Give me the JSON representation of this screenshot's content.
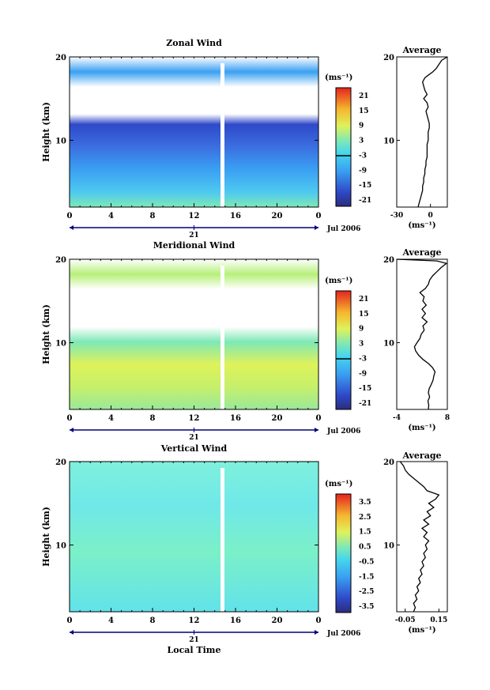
{
  "chart_data": [
    {
      "type": "heatmap",
      "title": "Zonal Wind",
      "ylabel": "Height (km)",
      "xlabel": "",
      "ylim": [
        2,
        20
      ],
      "xlim": [
        0,
        24
      ],
      "x_ticks": [
        "0",
        "4",
        "8",
        "12",
        "16",
        "20",
        "0"
      ],
      "y_ticks": [
        "20",
        "10"
      ],
      "date_ticks": [
        {
          "label": "21",
          "x": 12
        }
      ],
      "date_label": "Jul 2006",
      "colorbar": {
        "unit": "(ms⁻¹)",
        "ticks": [
          "21",
          "15",
          "9",
          "3",
          "-3",
          "-9",
          "-15",
          "-21"
        ],
        "zero_line_index": 3
      },
      "average": {
        "title": "Average",
        "xlim": [
          -30,
          15
        ],
        "x_ticks": [
          "-30",
          "0"
        ],
        "y_ticks": [
          "20",
          "10"
        ],
        "unit": "(ms⁻¹)",
        "profile": [
          [
            -11,
            2
          ],
          [
            -10,
            2.5
          ],
          [
            -9,
            3
          ],
          [
            -8,
            3.5
          ],
          [
            -7,
            4
          ],
          [
            -7,
            4.5
          ],
          [
            -6,
            5
          ],
          [
            -6,
            5.5
          ],
          [
            -5,
            6
          ],
          [
            -5,
            6.5
          ],
          [
            -4,
            7
          ],
          [
            -4,
            7.5
          ],
          [
            -3,
            8
          ],
          [
            -3,
            8.5
          ],
          [
            -3,
            9
          ],
          [
            -3,
            9.5
          ],
          [
            -2,
            10
          ],
          [
            -2,
            10.5
          ],
          [
            -2,
            11
          ],
          [
            -1,
            11.5
          ],
          [
            -1,
            12
          ],
          [
            -2,
            12.5
          ],
          [
            -3,
            13
          ],
          [
            -4,
            13.5
          ],
          [
            -2,
            14
          ],
          [
            -3,
            14.5
          ],
          [
            -6,
            15
          ],
          [
            -3,
            15.5
          ],
          [
            -5,
            16
          ],
          [
            -6,
            16.5
          ],
          [
            -7,
            17
          ],
          [
            -5,
            17.5
          ],
          [
            -2,
            17.8
          ],
          [
            2,
            18.2
          ],
          [
            5,
            18.6
          ],
          [
            7,
            19
          ],
          [
            10,
            19.6
          ],
          [
            15,
            20
          ]
        ]
      }
    },
    {
      "type": "heatmap",
      "title": "Meridional Wind",
      "ylabel": "Height (km)",
      "xlabel": "",
      "ylim": [
        2,
        20
      ],
      "xlim": [
        0,
        24
      ],
      "x_ticks": [
        "0",
        "4",
        "8",
        "12",
        "16",
        "20",
        "0"
      ],
      "y_ticks": [
        "20",
        "10"
      ],
      "date_ticks": [
        {
          "label": "21",
          "x": 12
        }
      ],
      "date_label": "Jul 2006",
      "colorbar": {
        "unit": "(ms⁻¹)",
        "ticks": [
          "21",
          "15",
          "9",
          "3",
          "-3",
          "-9",
          "-15",
          "-21"
        ],
        "zero_line_index": 3
      },
      "average": {
        "title": "Average",
        "xlim": [
          -4,
          8
        ],
        "x_ticks": [
          "-4",
          "8"
        ],
        "y_ticks": [
          "20",
          "10"
        ],
        "unit": "(ms⁻¹)",
        "profile": [
          [
            3.5,
            2
          ],
          [
            3.6,
            2.5
          ],
          [
            3.4,
            3
          ],
          [
            3.8,
            3.5
          ],
          [
            3.5,
            4
          ],
          [
            3.7,
            4.5
          ],
          [
            4.2,
            5
          ],
          [
            4.6,
            5.5
          ],
          [
            4.8,
            6
          ],
          [
            5.1,
            6.5
          ],
          [
            4.5,
            7
          ],
          [
            3.5,
            7.5
          ],
          [
            2.2,
            8
          ],
          [
            1.2,
            8.5
          ],
          [
            0.5,
            9
          ],
          [
            0.2,
            9.5
          ],
          [
            0.8,
            10
          ],
          [
            1.5,
            10.5
          ],
          [
            1.8,
            11
          ],
          [
            2.5,
            11.5
          ],
          [
            2.2,
            12
          ],
          [
            3.2,
            12.5
          ],
          [
            2.0,
            13
          ],
          [
            2.8,
            13.5
          ],
          [
            2.0,
            14
          ],
          [
            3.0,
            14.5
          ],
          [
            2.2,
            15
          ],
          [
            2.5,
            15.5
          ],
          [
            1.5,
            16
          ],
          [
            2.8,
            16.5
          ],
          [
            3.5,
            17
          ],
          [
            3.8,
            17.5
          ],
          [
            4.5,
            18
          ],
          [
            5.5,
            18.5
          ],
          [
            6.5,
            19
          ],
          [
            7.8,
            19.5
          ],
          [
            5.5,
            19.8
          ],
          [
            -4,
            20
          ]
        ]
      }
    },
    {
      "type": "heatmap",
      "title": "Vertical Wind",
      "ylabel": "Height (km)",
      "xlabel": "Local Time",
      "ylim": [
        2,
        20
      ],
      "xlim": [
        0,
        24
      ],
      "x_ticks": [
        "0",
        "4",
        "8",
        "12",
        "16",
        "20",
        "0"
      ],
      "y_ticks": [
        "20",
        "10"
      ],
      "date_ticks": [
        {
          "label": "21",
          "x": 12
        }
      ],
      "date_label": "Jul 2006",
      "colorbar": {
        "unit": "(ms⁻¹)",
        "ticks": [
          "3.5",
          "2.5",
          "1.5",
          "0.5",
          "-0.5",
          "-1.5",
          "-2.5",
          "-3.5"
        ],
        "zero_line_index": -1
      },
      "average": {
        "title": "Average",
        "xlim": [
          -0.1,
          0.2
        ],
        "x_ticks": [
          "-0.05",
          "0.15"
        ],
        "y_ticks": [
          "20",
          "10"
        ],
        "unit": "(ms⁻¹)",
        "profile": [
          [
            0.0,
            2
          ],
          [
            0.01,
            2.5
          ],
          [
            0.0,
            3
          ],
          [
            0.02,
            3.5
          ],
          [
            0.01,
            4
          ],
          [
            0.03,
            4.5
          ],
          [
            0.02,
            5
          ],
          [
            0.04,
            5.5
          ],
          [
            0.03,
            6
          ],
          [
            0.05,
            6.5
          ],
          [
            0.04,
            7
          ],
          [
            0.06,
            7.5
          ],
          [
            0.05,
            8
          ],
          [
            0.07,
            8.5
          ],
          [
            0.06,
            9
          ],
          [
            0.08,
            9.5
          ],
          [
            0.07,
            10
          ],
          [
            0.09,
            10.5
          ],
          [
            0.06,
            11
          ],
          [
            0.08,
            11.5
          ],
          [
            0.05,
            12
          ],
          [
            0.09,
            12.5
          ],
          [
            0.06,
            13
          ],
          [
            0.1,
            13.5
          ],
          [
            0.08,
            14
          ],
          [
            0.12,
            14.5
          ],
          [
            0.09,
            15
          ],
          [
            0.13,
            15.5
          ],
          [
            0.15,
            16
          ],
          [
            0.08,
            16.5
          ],
          [
            0.06,
            17
          ],
          [
            0.03,
            17.5
          ],
          [
            0.0,
            18
          ],
          [
            -0.03,
            18.5
          ],
          [
            -0.05,
            19
          ],
          [
            -0.06,
            19.5
          ],
          [
            -0.08,
            20
          ]
        ]
      }
    }
  ]
}
